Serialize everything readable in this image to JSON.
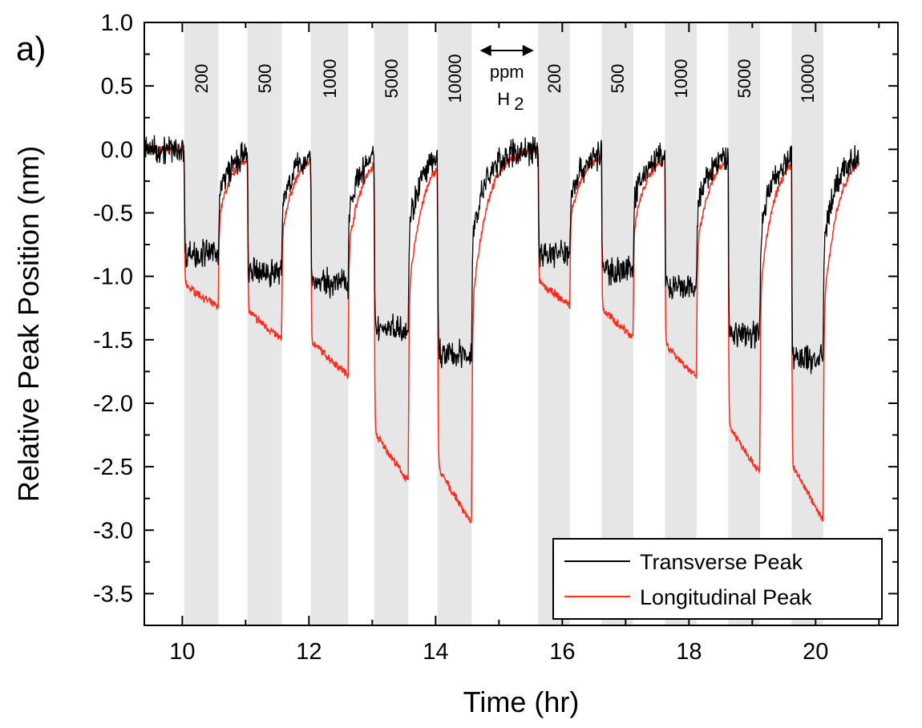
{
  "panel_label": "a)",
  "chart_data": {
    "type": "line",
    "xlabel": "Time (hr)",
    "ylabel": "Relative Peak Position (nm)",
    "xlim": [
      9.4,
      21.3
    ],
    "ylim": [
      -3.75,
      1.0
    ],
    "x_ticks": [
      10,
      12,
      14,
      16,
      18,
      20
    ],
    "x_minor_ticks": [
      11,
      13,
      15,
      17,
      19,
      21
    ],
    "y_ticks": [
      1.0,
      0.5,
      0.0,
      -0.5,
      -1.0,
      -1.5,
      -2.0,
      -2.5,
      -3.0,
      -3.5
    ],
    "x_tick_labels": [
      "10",
      "12",
      "14",
      "16",
      "18",
      "20"
    ],
    "y_tick_labels": [
      "1.0",
      "0.5",
      "0.0",
      "-0.5",
      "-1.0",
      "-1.5",
      "-2.0",
      "-2.5",
      "-3.0",
      "-3.5"
    ],
    "exposures": [
      {
        "label": "200",
        "start": 10.03,
        "end": 10.57,
        "transverse": -0.82,
        "longitudinal": -1.25
      },
      {
        "label": "500",
        "start": 11.03,
        "end": 11.57,
        "transverse": -0.97,
        "longitudinal": -1.5
      },
      {
        "label": "1000",
        "start": 12.03,
        "end": 12.62,
        "transverse": -1.05,
        "longitudinal": -1.78
      },
      {
        "label": "5000",
        "start": 13.03,
        "end": 13.57,
        "transverse": -1.4,
        "longitudinal": -2.62
      },
      {
        "label": "10000",
        "start": 14.03,
        "end": 14.57,
        "transverse": -1.62,
        "longitudinal": -2.95
      },
      {
        "label": "200",
        "start": 15.62,
        "end": 16.12,
        "transverse": -0.82,
        "longitudinal": -1.23
      },
      {
        "label": "500",
        "start": 16.62,
        "end": 17.12,
        "transverse": -0.95,
        "longitudinal": -1.48
      },
      {
        "label": "1000",
        "start": 17.62,
        "end": 18.12,
        "transverse": -1.1,
        "longitudinal": -1.8
      },
      {
        "label": "5000",
        "start": 18.62,
        "end": 19.12,
        "transverse": -1.45,
        "longitudinal": -2.55
      },
      {
        "label": "10000",
        "start": 19.62,
        "end": 20.12,
        "transverse": -1.65,
        "longitudinal": -2.92
      }
    ],
    "annotation": {
      "unit_text": "ppm",
      "gas_text": "H",
      "gas_subscript": "2"
    },
    "series": [
      {
        "name": "Transverse Peak",
        "color": "#000000",
        "noise": 0.09
      },
      {
        "name": "Longitudinal Peak",
        "color": "#ff2a1a",
        "noise": 0.025
      }
    ],
    "x_end": 20.68,
    "band_color": "#e6e6e6",
    "legend_position": "bottom-right",
    "grid": false
  }
}
